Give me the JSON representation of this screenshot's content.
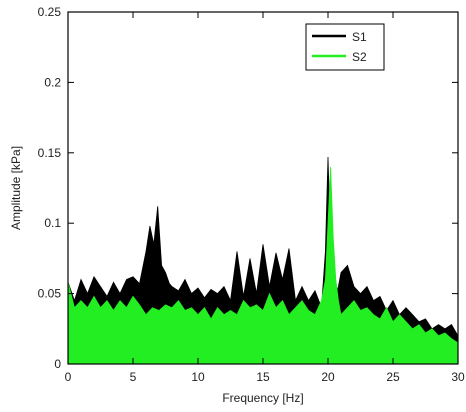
{
  "chart_data": {
    "type": "area",
    "xlabel": "Frequency [Hz]",
    "ylabel": "Amplitude [kPa]",
    "xlim": [
      0,
      30
    ],
    "ylim": [
      0,
      0.25
    ],
    "xticks": [
      0,
      5,
      10,
      15,
      20,
      25,
      30
    ],
    "xtick_labels": [
      "0",
      "5",
      "10",
      "15",
      "20",
      "25",
      "30"
    ],
    "yticks": [
      0,
      0.05,
      0.1,
      0.15,
      0.2,
      0.25
    ],
    "ytick_labels": [
      "0",
      "0.05",
      "0.1",
      "0.15",
      "0.2",
      "0.25"
    ],
    "grid": false,
    "legend_position": "top-right",
    "series": [
      {
        "name": "S1",
        "color": "#000000",
        "x": [
          0.0,
          0.5,
          1.0,
          1.5,
          2.0,
          2.5,
          3.0,
          3.5,
          4.0,
          4.5,
          5.0,
          5.5,
          6.0,
          6.3,
          6.6,
          6.9,
          7.2,
          7.5,
          7.8,
          8.0,
          8.5,
          9.0,
          9.5,
          10.0,
          10.5,
          11.0,
          11.5,
          12.0,
          12.5,
          13.0,
          13.5,
          14.0,
          14.5,
          15.0,
          15.5,
          16.0,
          16.5,
          17.0,
          17.5,
          18.0,
          18.5,
          19.0,
          19.5,
          19.8,
          20.0,
          20.2,
          20.4,
          20.6,
          20.8,
          21.0,
          21.5,
          22.0,
          22.5,
          23.0,
          23.5,
          24.0,
          24.5,
          25.0,
          25.5,
          26.0,
          26.5,
          27.0,
          27.5,
          28.0,
          28.5,
          29.0,
          29.5,
          30.0
        ],
        "y": [
          0.058,
          0.045,
          0.06,
          0.05,
          0.062,
          0.055,
          0.048,
          0.058,
          0.05,
          0.06,
          0.062,
          0.057,
          0.08,
          0.098,
          0.085,
          0.112,
          0.07,
          0.065,
          0.057,
          0.055,
          0.052,
          0.06,
          0.05,
          0.054,
          0.047,
          0.053,
          0.05,
          0.055,
          0.045,
          0.08,
          0.048,
          0.075,
          0.05,
          0.085,
          0.055,
          0.079,
          0.06,
          0.082,
          0.045,
          0.055,
          0.045,
          0.052,
          0.04,
          0.08,
          0.147,
          0.085,
          0.07,
          0.05,
          0.055,
          0.065,
          0.07,
          0.055,
          0.05,
          0.055,
          0.045,
          0.048,
          0.038,
          0.045,
          0.035,
          0.04,
          0.035,
          0.03,
          0.032,
          0.025,
          0.028,
          0.025,
          0.028,
          0.02
        ]
      },
      {
        "name": "S2",
        "color": "#22ee22",
        "x": [
          0.0,
          0.5,
          1.0,
          1.5,
          2.0,
          2.5,
          3.0,
          3.5,
          4.0,
          4.5,
          5.0,
          5.5,
          6.0,
          6.5,
          7.0,
          7.5,
          8.0,
          8.5,
          9.0,
          9.5,
          10.0,
          10.5,
          11.0,
          11.5,
          12.0,
          12.5,
          13.0,
          13.5,
          14.0,
          14.5,
          15.0,
          15.5,
          16.0,
          16.5,
          17.0,
          17.5,
          18.0,
          18.5,
          19.0,
          19.5,
          19.8,
          20.0,
          20.2,
          20.4,
          20.6,
          20.8,
          21.0,
          21.5,
          22.0,
          22.5,
          23.0,
          23.5,
          24.0,
          24.5,
          25.0,
          25.5,
          26.0,
          26.5,
          27.0,
          27.5,
          28.0,
          28.5,
          29.0,
          29.5,
          30.0
        ],
        "y": [
          0.058,
          0.04,
          0.045,
          0.04,
          0.048,
          0.04,
          0.045,
          0.038,
          0.045,
          0.04,
          0.048,
          0.042,
          0.035,
          0.04,
          0.038,
          0.042,
          0.04,
          0.045,
          0.038,
          0.04,
          0.035,
          0.04,
          0.032,
          0.04,
          0.035,
          0.038,
          0.035,
          0.045,
          0.04,
          0.042,
          0.038,
          0.05,
          0.04,
          0.045,
          0.035,
          0.04,
          0.045,
          0.038,
          0.035,
          0.045,
          0.06,
          0.1,
          0.14,
          0.09,
          0.06,
          0.045,
          0.035,
          0.04,
          0.045,
          0.038,
          0.04,
          0.035,
          0.032,
          0.04,
          0.03,
          0.035,
          0.03,
          0.025,
          0.028,
          0.022,
          0.025,
          0.02,
          0.022,
          0.018,
          0.015
        ]
      }
    ]
  }
}
